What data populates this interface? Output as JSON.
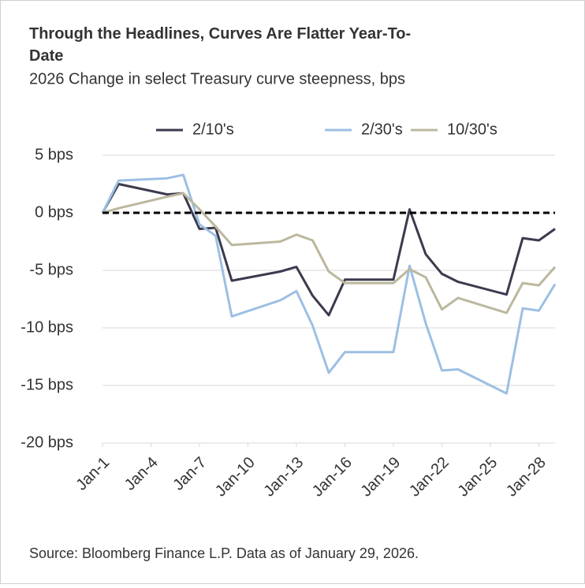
{
  "chart_data": {
    "type": "line",
    "title": "Through the Headlines, Curves Are Flatter Year-To-Date",
    "subtitle": "2026 Change in select Treasury curve steepness, bps",
    "source": "Source: Bloomberg Finance L.P. Data as of January 29, 2026.",
    "x": [
      1,
      2,
      5,
      6,
      7,
      8,
      9,
      12,
      13,
      14,
      15,
      16,
      19,
      20,
      21,
      22,
      23,
      26,
      27,
      28,
      29
    ],
    "xlim": [
      1,
      29
    ],
    "xticks": [
      {
        "value": 1,
        "label": "Jan-1"
      },
      {
        "value": 4,
        "label": "Jan-4"
      },
      {
        "value": 7,
        "label": "Jan-7"
      },
      {
        "value": 10,
        "label": "Jan-10"
      },
      {
        "value": 13,
        "label": "Jan-13"
      },
      {
        "value": 16,
        "label": "Jan-16"
      },
      {
        "value": 19,
        "label": "Jan-19"
      },
      {
        "value": 22,
        "label": "Jan-22"
      },
      {
        "value": 25,
        "label": "Jan-25"
      },
      {
        "value": 28,
        "label": "Jan-28"
      }
    ],
    "ylim": [
      -20,
      5
    ],
    "yticks": [
      {
        "value": 5,
        "label": "5 bps"
      },
      {
        "value": 0,
        "label": "0 bps"
      },
      {
        "value": -5,
        "label": "-5 bps"
      },
      {
        "value": -10,
        "label": "-10 bps"
      },
      {
        "value": -15,
        "label": "-15 bps"
      },
      {
        "value": -20,
        "label": "-20 bps"
      }
    ],
    "grid": true,
    "zero_line": true,
    "legend": "top",
    "series": [
      {
        "name": "2/10's",
        "color": "#3b3a4e",
        "values": [
          0,
          2.5,
          1.6,
          1.7,
          -1.4,
          -1.3,
          -5.9,
          -5.1,
          -4.7,
          -7.2,
          -8.9,
          -5.8,
          -5.8,
          0.3,
          -3.6,
          -5.3,
          -6.0,
          -7.1,
          -2.2,
          -2.4,
          -1.4
        ]
      },
      {
        "name": "2/30's",
        "color": "#9dbfe3",
        "values": [
          0,
          2.8,
          3.0,
          3.3,
          -1.0,
          -2.0,
          -9.0,
          -7.6,
          -6.8,
          -9.8,
          -13.9,
          -12.1,
          -12.1,
          -4.6,
          -9.6,
          -13.7,
          -13.6,
          -15.7,
          -8.3,
          -8.5,
          -6.2
        ]
      },
      {
        "name": "10/30's",
        "color": "#bcb89e",
        "values": [
          0,
          0.4,
          1.4,
          1.7,
          0.3,
          -1.2,
          -2.8,
          -2.5,
          -1.9,
          -2.4,
          -5.1,
          -6.1,
          -6.1,
          -4.9,
          -5.6,
          -8.4,
          -7.4,
          -8.7,
          -6.1,
          -6.3,
          -4.7
        ]
      }
    ]
  }
}
